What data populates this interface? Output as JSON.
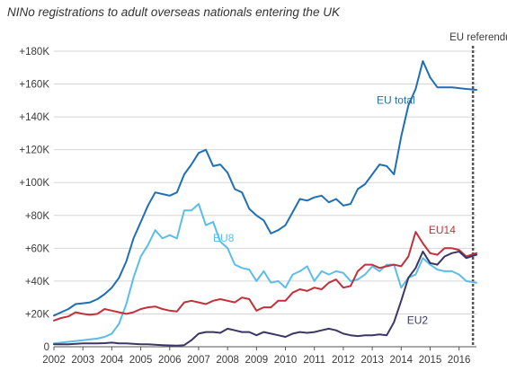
{
  "chart_data": {
    "type": "line",
    "title": "NINo registrations to adult overseas nationals entering the UK",
    "xlabel": "",
    "ylabel": "",
    "xlim": [
      2002,
      2016.6
    ],
    "ylim": [
      0,
      180000
    ],
    "x_ticks": [
      "2002",
      "2003",
      "2004",
      "2005",
      "2006",
      "2007",
      "2008",
      "2009",
      "2010",
      "2011",
      "2012",
      "2013",
      "2014",
      "2015",
      "2016"
    ],
    "y_ticks": [
      {
        "value": 0,
        "label": "0"
      },
      {
        "value": 20000,
        "label": "+20K"
      },
      {
        "value": 40000,
        "label": "+40K"
      },
      {
        "value": 60000,
        "label": "+60K"
      },
      {
        "value": 80000,
        "label": "+80K"
      },
      {
        "value": 100000,
        "label": "+100K"
      },
      {
        "value": 120000,
        "label": "+120K"
      },
      {
        "value": 140000,
        "label": "+140K"
      },
      {
        "value": 160000,
        "label": "+160K"
      },
      {
        "value": 180000,
        "label": "+180K"
      }
    ],
    "grid": "horizontal",
    "annotations": [
      {
        "x": 2016.48,
        "label": "EU referendum"
      }
    ],
    "series": [
      {
        "name": "EU total",
        "color": "#1f6fb5",
        "label_at": [
          2013.15,
          148000
        ],
        "x": [
          2002.0,
          2002.25,
          2002.5,
          2002.75,
          2003.0,
          2003.25,
          2003.5,
          2003.75,
          2004.0,
          2004.25,
          2004.5,
          2004.75,
          2005.0,
          2005.25,
          2005.5,
          2005.75,
          2006.0,
          2006.25,
          2006.5,
          2006.75,
          2007.0,
          2007.25,
          2007.5,
          2007.75,
          2008.0,
          2008.25,
          2008.5,
          2008.75,
          2009.0,
          2009.25,
          2009.5,
          2009.75,
          2010.0,
          2010.25,
          2010.5,
          2010.75,
          2011.0,
          2011.25,
          2011.5,
          2011.75,
          2012.0,
          2012.25,
          2012.5,
          2012.75,
          2013.0,
          2013.25,
          2013.5,
          2013.75,
          2014.0,
          2014.25,
          2014.5,
          2014.75,
          2015.0,
          2015.25,
          2015.5,
          2015.75,
          2016.0,
          2016.25,
          2016.6
        ],
        "values": [
          19000,
          21000,
          23000,
          26000,
          26500,
          27000,
          29000,
          32000,
          36000,
          42000,
          52000,
          66000,
          76000,
          86000,
          94000,
          93000,
          92000,
          94000,
          105000,
          111000,
          118000,
          120000,
          110000,
          111000,
          106000,
          96000,
          94000,
          84000,
          80000,
          77000,
          69000,
          71000,
          74000,
          82000,
          90000,
          89000,
          91000,
          92000,
          88000,
          90000,
          86000,
          87000,
          96000,
          99000,
          105000,
          111000,
          110000,
          105000,
          128000,
          147000,
          157000,
          174000,
          164000,
          158000,
          158000,
          158000,
          157500,
          157000,
          156500
        ]
      },
      {
        "name": "EU8",
        "color": "#5bbde8",
        "label_at": [
          2007.5,
          64000
        ],
        "x": [
          2002.0,
          2002.25,
          2002.5,
          2002.75,
          2003.0,
          2003.25,
          2003.5,
          2003.75,
          2004.0,
          2004.25,
          2004.5,
          2004.75,
          2005.0,
          2005.25,
          2005.5,
          2005.75,
          2006.0,
          2006.25,
          2006.5,
          2006.75,
          2007.0,
          2007.25,
          2007.5,
          2007.75,
          2008.0,
          2008.25,
          2008.5,
          2008.75,
          2009.0,
          2009.25,
          2009.5,
          2009.75,
          2010.0,
          2010.25,
          2010.5,
          2010.75,
          2011.0,
          2011.25,
          2011.5,
          2011.75,
          2012.0,
          2012.25,
          2012.5,
          2012.75,
          2013.0,
          2013.25,
          2013.5,
          2013.75,
          2014.0,
          2014.25,
          2014.5,
          2014.75,
          2015.0,
          2015.25,
          2015.5,
          2015.75,
          2016.0,
          2016.25,
          2016.6
        ],
        "values": [
          2000,
          2500,
          3000,
          3500,
          4000,
          4500,
          5000,
          6000,
          8000,
          14000,
          26000,
          42000,
          55000,
          62000,
          71000,
          66000,
          68000,
          66000,
          83000,
          83000,
          87000,
          74000,
          76000,
          64000,
          60000,
          50000,
          48000,
          47000,
          40000,
          46000,
          39000,
          40000,
          36000,
          44000,
          46000,
          49000,
          40000,
          46000,
          44000,
          46000,
          45000,
          40000,
          41000,
          44000,
          49000,
          46000,
          50000,
          50000,
          36000,
          42000,
          44000,
          54000,
          50000,
          47000,
          46000,
          46000,
          44000,
          40000,
          39000
        ]
      },
      {
        "name": "EU14",
        "color": "#c0313c",
        "label_at": [
          2014.95,
          69000
        ],
        "x": [
          2002.0,
          2002.25,
          2002.5,
          2002.75,
          2003.0,
          2003.25,
          2003.5,
          2003.75,
          2004.0,
          2004.25,
          2004.5,
          2004.75,
          2005.0,
          2005.25,
          2005.5,
          2005.75,
          2006.0,
          2006.25,
          2006.5,
          2006.75,
          2007.0,
          2007.25,
          2007.5,
          2007.75,
          2008.0,
          2008.25,
          2008.5,
          2008.75,
          2009.0,
          2009.25,
          2009.5,
          2009.75,
          2010.0,
          2010.25,
          2010.5,
          2010.75,
          2011.0,
          2011.25,
          2011.5,
          2011.75,
          2012.0,
          2012.25,
          2012.5,
          2012.75,
          2013.0,
          2013.25,
          2013.5,
          2013.75,
          2014.0,
          2014.25,
          2014.5,
          2014.75,
          2015.0,
          2015.25,
          2015.5,
          2015.75,
          2016.0,
          2016.25,
          2016.6
        ],
        "values": [
          16000,
          17500,
          18500,
          21000,
          20000,
          19500,
          20000,
          23000,
          22000,
          21000,
          20000,
          21000,
          23000,
          24000,
          24500,
          23000,
          22000,
          21500,
          27000,
          28000,
          27000,
          26000,
          28000,
          29000,
          28000,
          27000,
          30000,
          29000,
          22000,
          24000,
          24000,
          28000,
          28000,
          33000,
          35000,
          34000,
          36000,
          35000,
          39000,
          41000,
          36000,
          37000,
          46000,
          50000,
          50000,
          48000,
          49000,
          50000,
          49000,
          55000,
          70000,
          63000,
          57000,
          56000,
          60000,
          60000,
          59000,
          55000,
          57000
        ]
      },
      {
        "name": "EU2",
        "color": "#3a3766",
        "label_at": [
          2014.2,
          14000
        ],
        "x": [
          2002.0,
          2002.25,
          2002.5,
          2002.75,
          2003.0,
          2003.25,
          2003.5,
          2003.75,
          2004.0,
          2004.25,
          2004.5,
          2004.75,
          2005.0,
          2005.25,
          2005.5,
          2005.75,
          2006.0,
          2006.25,
          2006.5,
          2006.75,
          2007.0,
          2007.25,
          2007.5,
          2007.75,
          2008.0,
          2008.25,
          2008.5,
          2008.75,
          2009.0,
          2009.25,
          2009.5,
          2009.75,
          2010.0,
          2010.25,
          2010.5,
          2010.75,
          2011.0,
          2011.25,
          2011.5,
          2011.75,
          2012.0,
          2012.25,
          2012.5,
          2012.75,
          2013.0,
          2013.25,
          2013.5,
          2013.75,
          2014.0,
          2014.25,
          2014.5,
          2014.75,
          2015.0,
          2015.25,
          2015.5,
          2015.75,
          2016.0,
          2016.25,
          2016.6
        ],
        "values": [
          1500,
          1500,
          1500,
          1800,
          2000,
          2000,
          2000,
          2200,
          2500,
          2000,
          2000,
          1800,
          1500,
          1500,
          1200,
          1000,
          800,
          700,
          1000,
          4000,
          8000,
          9000,
          9000,
          8500,
          11000,
          10000,
          9000,
          9000,
          7000,
          9000,
          8000,
          7000,
          6000,
          8000,
          9000,
          8500,
          9000,
          10000,
          11000,
          10000,
          8000,
          7000,
          6500,
          7000,
          7000,
          7500,
          7000,
          15000,
          28000,
          42000,
          48000,
          58000,
          51000,
          50000,
          55000,
          57000,
          58000,
          54000,
          56000
        ]
      }
    ]
  }
}
